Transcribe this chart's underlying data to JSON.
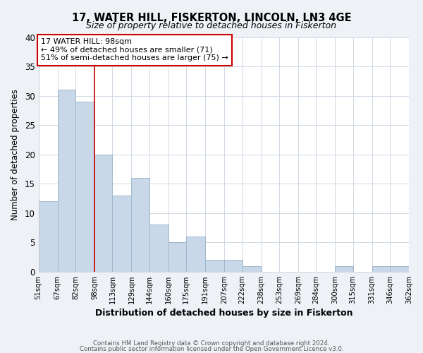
{
  "title": "17, WATER HILL, FISKERTON, LINCOLN, LN3 4GE",
  "subtitle": "Size of property relative to detached houses in Fiskerton",
  "xlabel": "Distribution of detached houses by size in Fiskerton",
  "ylabel": "Number of detached properties",
  "bar_color": "#c8d8e8",
  "bar_edge_color": "#a0b8cc",
  "bins": [
    51,
    67,
    82,
    98,
    113,
    129,
    144,
    160,
    175,
    191,
    207,
    222,
    238,
    253,
    269,
    284,
    300,
    315,
    331,
    346,
    362
  ],
  "counts": [
    12,
    31,
    29,
    20,
    13,
    16,
    8,
    5,
    6,
    2,
    2,
    1,
    0,
    0,
    0,
    0,
    1,
    0,
    1,
    1
  ],
  "tick_labels": [
    "51sqm",
    "67sqm",
    "82sqm",
    "98sqm",
    "113sqm",
    "129sqm",
    "144sqm",
    "160sqm",
    "175sqm",
    "191sqm",
    "207sqm",
    "222sqm",
    "238sqm",
    "253sqm",
    "269sqm",
    "284sqm",
    "300sqm",
    "315sqm",
    "331sqm",
    "346sqm",
    "362sqm"
  ],
  "ylim": [
    0,
    40
  ],
  "yticks": [
    0,
    5,
    10,
    15,
    20,
    25,
    30,
    35,
    40
  ],
  "vline_x": 98,
  "vline_color": "#cc0000",
  "annotation_title": "17 WATER HILL: 98sqm",
  "annotation_line1": "← 49% of detached houses are smaller (71)",
  "annotation_line2": "51% of semi-detached houses are larger (75) →",
  "annotation_box_color": "#ffffff",
  "annotation_box_edge": "#cc0000",
  "footer1": "Contains HM Land Registry data © Crown copyright and database right 2024.",
  "footer2": "Contains public sector information licensed under the Open Government Licence v3.0.",
  "background_color": "#eef2f6",
  "plot_background": "#ffffff",
  "grid_color": "#d0d8e4"
}
